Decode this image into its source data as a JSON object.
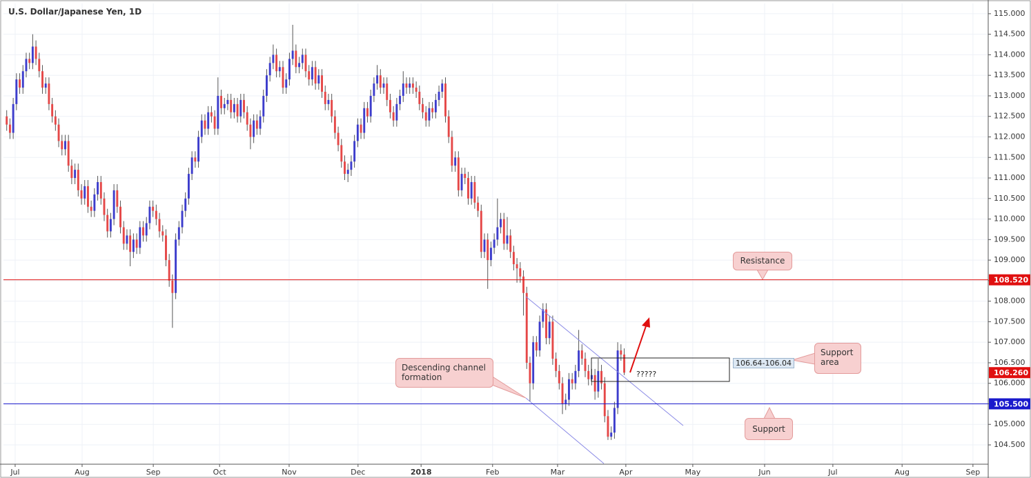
{
  "chart_data": {
    "type": "candlestick",
    "title": "U.S. Dollar/Japanese Yen, 1D",
    "up_color": "#3d3dcc",
    "down_color": "#e54848",
    "grid": true,
    "xlim": [
      -1,
      302
    ],
    "ylim": [
      104.03,
      115.25
    ],
    "xticks": [
      {
        "value": 2.6,
        "label": "Jul"
      },
      {
        "value": 23.2,
        "label": "Aug"
      },
      {
        "value": 45.1,
        "label": "Sep"
      },
      {
        "value": 65.5,
        "label": "Oct"
      },
      {
        "value": 86.9,
        "label": "Nov"
      },
      {
        "value": 108.1,
        "label": "Dec"
      },
      {
        "value": 127.5,
        "label": "2018"
      },
      {
        "value": 149.5,
        "label": "Feb"
      },
      {
        "value": 169.5,
        "label": "Mar"
      },
      {
        "value": 190.5,
        "label": "Apr"
      },
      {
        "value": 211.1,
        "label": "May"
      },
      {
        "value": 233.2,
        "label": "Jun"
      },
      {
        "value": 254.2,
        "label": "Jul"
      },
      {
        "value": 275.5,
        "label": "Aug"
      },
      {
        "value": 297.3,
        "label": "Sep"
      }
    ],
    "yticks": [
      {
        "value": 104.5,
        "label": "104.500"
      },
      {
        "value": 105,
        "label": "105.000"
      },
      {
        "value": 105.5,
        "label": "105.500"
      },
      {
        "value": 106,
        "label": "106.000"
      },
      {
        "value": 106.5,
        "label": "106.500"
      },
      {
        "value": 107,
        "label": "107.000"
      },
      {
        "value": 107.5,
        "label": "107.500"
      },
      {
        "value": 108,
        "label": "108.000"
      },
      {
        "value": 108.5,
        "label": "108.500"
      },
      {
        "value": 109,
        "label": "109.000"
      },
      {
        "value": 109.5,
        "label": "109.500"
      },
      {
        "value": 110,
        "label": "110.000"
      },
      {
        "value": 110.5,
        "label": "110.500"
      },
      {
        "value": 111,
        "label": "111.000"
      },
      {
        "value": 111.5,
        "label": "111.500"
      },
      {
        "value": 112,
        "label": "112.000"
      },
      {
        "value": 112.5,
        "label": "112.500"
      },
      {
        "value": 113,
        "label": "113.000"
      },
      {
        "value": 113.5,
        "label": "113.500"
      },
      {
        "value": 114,
        "label": "114.000"
      },
      {
        "value": 114.5,
        "label": "114.500"
      },
      {
        "value": 115,
        "label": "115.000"
      }
    ],
    "hlines": [
      {
        "value": 108.52,
        "label": "108.520",
        "color": "#e01010"
      },
      {
        "value": 105.5,
        "label": "105.500",
        "color": "#1a1acc"
      },
      {
        "value": 106.26,
        "label": "106.260",
        "color": "#e01010",
        "line": false
      }
    ],
    "annotations": {
      "resistance": "Resistance",
      "support_area": "Support area",
      "support": "Support",
      "channel": "Descending channel formation",
      "zone": "106.64-106.04",
      "question": "?????"
    },
    "ohlc": [
      [
        112.5,
        112.65,
        112.15,
        112.3
      ],
      [
        112.3,
        112.45,
        111.95,
        112.1
      ],
      [
        112.1,
        112.95,
        111.95,
        112.8
      ],
      [
        112.8,
        113.55,
        112.65,
        113.4
      ],
      [
        113.4,
        113.55,
        113.05,
        113.2
      ],
      [
        113.2,
        113.75,
        113.05,
        113.6
      ],
      [
        113.6,
        114.05,
        113.45,
        113.9
      ],
      [
        113.9,
        114.05,
        113.65,
        113.8
      ],
      [
        113.8,
        114.5,
        113.65,
        114.2
      ],
      [
        114.2,
        114.35,
        113.75,
        113.9
      ],
      [
        113.9,
        114.05,
        113.45,
        113.6
      ],
      [
        113.6,
        113.75,
        113.05,
        113.2
      ],
      [
        113.2,
        113.45,
        113.05,
        113.3
      ],
      [
        113.3,
        113.45,
        112.65,
        112.8
      ],
      [
        112.8,
        112.95,
        112.35,
        112.5
      ],
      [
        112.5,
        112.65,
        112.15,
        112.3
      ],
      [
        112.3,
        112.45,
        111.75,
        111.9
      ],
      [
        111.9,
        112.05,
        111.55,
        111.7
      ],
      [
        111.7,
        112.05,
        111.55,
        111.9
      ],
      [
        111.9,
        112.05,
        111.15,
        111.3
      ],
      [
        111.3,
        111.45,
        110.85,
        111.0
      ],
      [
        111.0,
        111.35,
        110.85,
        111.2
      ],
      [
        111.2,
        111.35,
        110.55,
        110.7
      ],
      [
        110.7,
        110.85,
        110.35,
        110.5
      ],
      [
        110.5,
        110.95,
        110.35,
        110.8
      ],
      [
        110.8,
        110.95,
        110.15,
        110.3
      ],
      [
        110.3,
        110.45,
        110.05,
        110.2
      ],
      [
        110.2,
        110.75,
        110.05,
        110.6
      ],
      [
        110.6,
        111.05,
        110.45,
        110.9
      ],
      [
        110.9,
        111.05,
        110.35,
        110.5
      ],
      [
        110.5,
        110.65,
        109.95,
        110.1
      ],
      [
        110.1,
        110.25,
        109.55,
        109.7
      ],
      [
        109.7,
        110.15,
        109.55,
        110.0
      ],
      [
        110.0,
        110.85,
        109.85,
        110.7
      ],
      [
        110.7,
        110.85,
        110.15,
        110.3
      ],
      [
        110.3,
        110.45,
        109.65,
        109.8
      ],
      [
        109.8,
        109.95,
        109.25,
        109.4
      ],
      [
        109.4,
        109.75,
        109.25,
        109.6
      ],
      [
        109.6,
        109.75,
        108.85,
        109.2
      ],
      [
        109.2,
        109.65,
        109.05,
        109.5
      ],
      [
        109.5,
        109.65,
        109.15,
        109.3
      ],
      [
        109.3,
        109.95,
        109.15,
        109.8
      ],
      [
        109.8,
        109.95,
        109.45,
        109.6
      ],
      [
        109.6,
        110.05,
        109.45,
        109.9
      ],
      [
        109.9,
        110.45,
        109.75,
        110.3
      ],
      [
        110.3,
        110.45,
        110.05,
        110.2
      ],
      [
        110.2,
        110.35,
        109.85,
        110.0
      ],
      [
        110.0,
        110.15,
        109.55,
        109.7
      ],
      [
        109.7,
        109.85,
        109.45,
        109.6
      ],
      [
        109.6,
        109.75,
        108.85,
        109.0
      ],
      [
        109.0,
        109.15,
        108.35,
        108.5
      ],
      [
        108.5,
        108.65,
        107.35,
        108.2
      ],
      [
        108.2,
        109.65,
        108.05,
        109.5
      ],
      [
        109.5,
        109.95,
        109.35,
        109.8
      ],
      [
        109.8,
        110.35,
        109.65,
        110.2
      ],
      [
        110.2,
        110.65,
        110.05,
        110.5
      ],
      [
        110.5,
        111.25,
        110.35,
        111.1
      ],
      [
        111.1,
        111.65,
        110.95,
        111.5
      ],
      [
        111.5,
        111.65,
        111.25,
        111.4
      ],
      [
        111.4,
        112.15,
        111.25,
        112.0
      ],
      [
        112.0,
        112.55,
        111.85,
        112.4
      ],
      [
        112.4,
        112.55,
        112.05,
        112.2
      ],
      [
        112.2,
        112.75,
        112.05,
        112.6
      ],
      [
        112.6,
        112.75,
        112.35,
        112.5
      ],
      [
        112.5,
        112.65,
        112.05,
        112.2
      ],
      [
        112.2,
        113.45,
        112.05,
        113.0
      ],
      [
        113.0,
        113.15,
        112.55,
        112.7
      ],
      [
        112.7,
        112.95,
        112.55,
        112.8
      ],
      [
        112.8,
        113.05,
        112.65,
        112.9
      ],
      [
        112.9,
        113.05,
        112.45,
        112.6
      ],
      [
        112.6,
        112.95,
        112.45,
        112.8
      ],
      [
        112.8,
        112.95,
        112.35,
        112.5
      ],
      [
        112.5,
        113.05,
        112.35,
        112.9
      ],
      [
        112.9,
        113.05,
        112.45,
        112.6
      ],
      [
        112.6,
        112.75,
        112.15,
        112.3
      ],
      [
        112.3,
        112.45,
        111.7,
        112.0
      ],
      [
        112.0,
        112.55,
        111.85,
        112.4
      ],
      [
        112.4,
        112.55,
        112.05,
        112.2
      ],
      [
        112.2,
        112.65,
        112.05,
        112.5
      ],
      [
        112.5,
        113.15,
        112.35,
        113.0
      ],
      [
        113.0,
        113.65,
        112.85,
        113.5
      ],
      [
        113.5,
        113.95,
        113.35,
        113.8
      ],
      [
        113.8,
        114.25,
        113.65,
        114.0
      ],
      [
        114.0,
        114.15,
        113.45,
        113.6
      ],
      [
        113.6,
        113.85,
        113.45,
        113.7
      ],
      [
        113.7,
        113.85,
        113.05,
        113.2
      ],
      [
        113.2,
        113.55,
        113.05,
        113.4
      ],
      [
        113.4,
        114.05,
        113.25,
        113.9
      ],
      [
        113.9,
        114.73,
        113.75,
        114.1
      ],
      [
        114.1,
        114.25,
        113.55,
        113.7
      ],
      [
        113.7,
        113.95,
        113.55,
        113.8
      ],
      [
        113.8,
        114.15,
        113.65,
        114.0
      ],
      [
        114.0,
        114.15,
        113.45,
        113.6
      ],
      [
        113.6,
        113.75,
        113.25,
        113.4
      ],
      [
        113.4,
        113.85,
        113.25,
        113.7
      ],
      [
        113.7,
        113.85,
        113.15,
        113.3
      ],
      [
        113.3,
        113.65,
        113.15,
        113.5
      ],
      [
        113.5,
        113.65,
        112.95,
        113.1
      ],
      [
        113.1,
        113.25,
        112.65,
        112.8
      ],
      [
        112.8,
        113.05,
        112.65,
        112.9
      ],
      [
        112.9,
        113.05,
        112.35,
        112.5
      ],
      [
        112.5,
        112.65,
        111.95,
        112.1
      ],
      [
        112.1,
        112.25,
        111.65,
        111.8
      ],
      [
        111.8,
        111.95,
        111.25,
        111.4
      ],
      [
        111.4,
        111.55,
        110.95,
        111.1
      ],
      [
        111.1,
        111.35,
        110.9,
        111.2
      ],
      [
        111.2,
        111.55,
        111.05,
        111.4
      ],
      [
        111.4,
        112.05,
        111.25,
        111.9
      ],
      [
        111.9,
        112.45,
        111.75,
        112.3
      ],
      [
        112.3,
        112.45,
        111.95,
        112.1
      ],
      [
        112.1,
        112.85,
        111.95,
        112.7
      ],
      [
        112.7,
        112.85,
        112.35,
        112.5
      ],
      [
        112.5,
        113.15,
        112.35,
        113.0
      ],
      [
        113.0,
        113.45,
        112.85,
        113.3
      ],
      [
        113.3,
        113.75,
        113.15,
        113.5
      ],
      [
        113.5,
        113.65,
        113.05,
        113.2
      ],
      [
        113.2,
        113.45,
        113.05,
        113.3
      ],
      [
        113.3,
        113.45,
        112.75,
        112.9
      ],
      [
        112.9,
        113.05,
        112.45,
        112.6
      ],
      [
        112.6,
        112.75,
        112.25,
        112.4
      ],
      [
        112.4,
        112.95,
        112.25,
        112.8
      ],
      [
        112.8,
        113.15,
        112.65,
        113.0
      ],
      [
        113.0,
        113.6,
        112.85,
        113.3
      ],
      [
        113.3,
        113.45,
        113.05,
        113.2
      ],
      [
        113.2,
        113.45,
        113.05,
        113.3
      ],
      [
        113.3,
        113.45,
        113.05,
        113.2
      ],
      [
        113.2,
        113.35,
        112.95,
        113.1
      ],
      [
        113.1,
        113.25,
        112.65,
        112.8
      ],
      [
        112.8,
        112.95,
        112.45,
        112.6
      ],
      [
        112.6,
        112.75,
        112.25,
        112.4
      ],
      [
        112.4,
        112.85,
        112.25,
        112.7
      ],
      [
        112.7,
        112.85,
        112.45,
        112.6
      ],
      [
        112.6,
        113.05,
        112.45,
        112.9
      ],
      [
        112.9,
        113.25,
        112.75,
        113.1
      ],
      [
        113.1,
        113.4,
        112.95,
        113.3
      ],
      [
        113.3,
        113.45,
        112.35,
        112.5
      ],
      [
        112.5,
        112.65,
        111.85,
        112.0
      ],
      [
        112.0,
        112.15,
        111.15,
        111.3
      ],
      [
        111.3,
        111.65,
        111.15,
        111.5
      ],
      [
        111.5,
        111.65,
        110.55,
        110.7
      ],
      [
        110.7,
        111.25,
        110.55,
        111.1
      ],
      [
        111.1,
        111.25,
        110.85,
        111.0
      ],
      [
        111.0,
        111.15,
        110.35,
        110.5
      ],
      [
        110.5,
        111.05,
        110.35,
        110.9
      ],
      [
        110.9,
        111.05,
        110.25,
        110.4
      ],
      [
        110.4,
        110.55,
        110.05,
        110.2
      ],
      [
        110.2,
        110.35,
        109.05,
        109.2
      ],
      [
        109.2,
        109.65,
        109.05,
        109.5
      ],
      [
        109.5,
        109.65,
        108.3,
        109.0
      ],
      [
        109.0,
        109.45,
        108.85,
        109.3
      ],
      [
        109.3,
        109.65,
        109.15,
        109.5
      ],
      [
        109.5,
        110.5,
        109.35,
        109.8
      ],
      [
        109.8,
        110.15,
        109.65,
        110.0
      ],
      [
        110.0,
        110.15,
        109.25,
        109.4
      ],
      [
        109.4,
        110.05,
        109.25,
        109.6
      ],
      [
        109.6,
        109.75,
        109.05,
        109.2
      ],
      [
        109.2,
        109.35,
        108.75,
        108.9
      ],
      [
        108.9,
        109.05,
        108.45,
        108.8
      ],
      [
        108.8,
        108.95,
        108.45,
        108.6
      ],
      [
        108.6,
        108.75,
        107.65,
        108.2
      ],
      [
        108.2,
        108.35,
        106.35,
        106.5
      ],
      [
        106.5,
        106.65,
        105.55,
        106.0
      ],
      [
        106.0,
        107.15,
        105.85,
        107.0
      ],
      [
        107.0,
        107.15,
        106.65,
        106.8
      ],
      [
        106.8,
        107.65,
        106.65,
        107.5
      ],
      [
        107.5,
        107.95,
        107.35,
        107.8
      ],
      [
        107.8,
        107.95,
        106.95,
        107.1
      ],
      [
        107.1,
        107.65,
        106.95,
        107.5
      ],
      [
        107.5,
        107.65,
        106.45,
        106.6
      ],
      [
        106.6,
        106.75,
        106.15,
        106.3
      ],
      [
        106.3,
        106.45,
        105.85,
        106.0
      ],
      [
        106.0,
        106.15,
        105.25,
        105.5
      ],
      [
        105.5,
        105.75,
        105.35,
        105.6
      ],
      [
        105.6,
        106.25,
        105.45,
        106.1
      ],
      [
        106.1,
        106.25,
        105.85,
        106.0
      ],
      [
        106.0,
        106.45,
        105.85,
        106.3
      ],
      [
        106.3,
        107.3,
        106.15,
        106.8
      ],
      [
        106.8,
        106.95,
        106.45,
        106.6
      ],
      [
        106.6,
        106.75,
        106.15,
        106.3
      ],
      [
        106.3,
        106.45,
        105.95,
        106.1
      ],
      [
        106.1,
        106.35,
        105.95,
        106.2
      ],
      [
        106.2,
        106.35,
        105.6,
        105.8
      ],
      [
        105.8,
        106.6,
        105.65,
        106.3
      ],
      [
        106.3,
        106.45,
        105.85,
        106.0
      ],
      [
        106.0,
        106.15,
        105.05,
        105.2
      ],
      [
        105.2,
        105.35,
        104.62,
        104.7
      ],
      [
        104.7,
        104.95,
        104.62,
        104.8
      ],
      [
        104.8,
        105.55,
        104.65,
        105.4
      ],
      [
        105.4,
        107.0,
        105.25,
        106.8
      ],
      [
        106.8,
        106.95,
        106.55,
        106.7
      ],
      [
        106.7,
        106.85,
        106.2,
        106.26
      ]
    ]
  }
}
